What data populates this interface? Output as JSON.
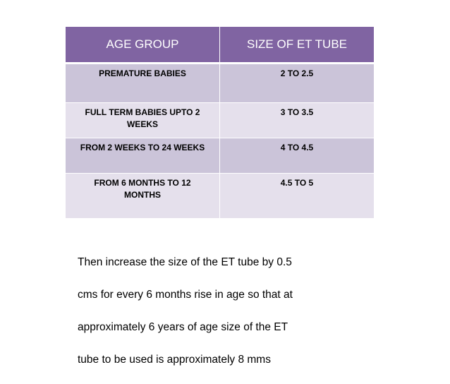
{
  "table": {
    "headers": [
      "AGE GROUP",
      "SIZE OF ET TUBE"
    ],
    "rows": [
      {
        "age_group": "PREMATURE BABIES",
        "tube_size": "2 TO 2.5"
      },
      {
        "age_group": "FULL TERM BABIES UPTO 2 WEEKS",
        "tube_size": "3 TO 3.5"
      },
      {
        "age_group": "FROM 2 WEEKS TO 24 WEEKS",
        "tube_size": "4 TO 4.5"
      },
      {
        "age_group": "FROM 6 MONTHS TO 12 MONTHS",
        "tube_size": "4.5 TO 5"
      }
    ]
  },
  "note": {
    "lines": [
      "Then increase the size of the ET tube by 0.5",
      "cms for every 6 months rise in age so that at",
      "approximately 6 years of age size of the ET",
      "tube to be used is approximately 8 mms"
    ]
  },
  "colors": {
    "header_bg": "#8064a2",
    "row_dark": "#cbc4d9",
    "row_light": "#e5e0ec"
  }
}
